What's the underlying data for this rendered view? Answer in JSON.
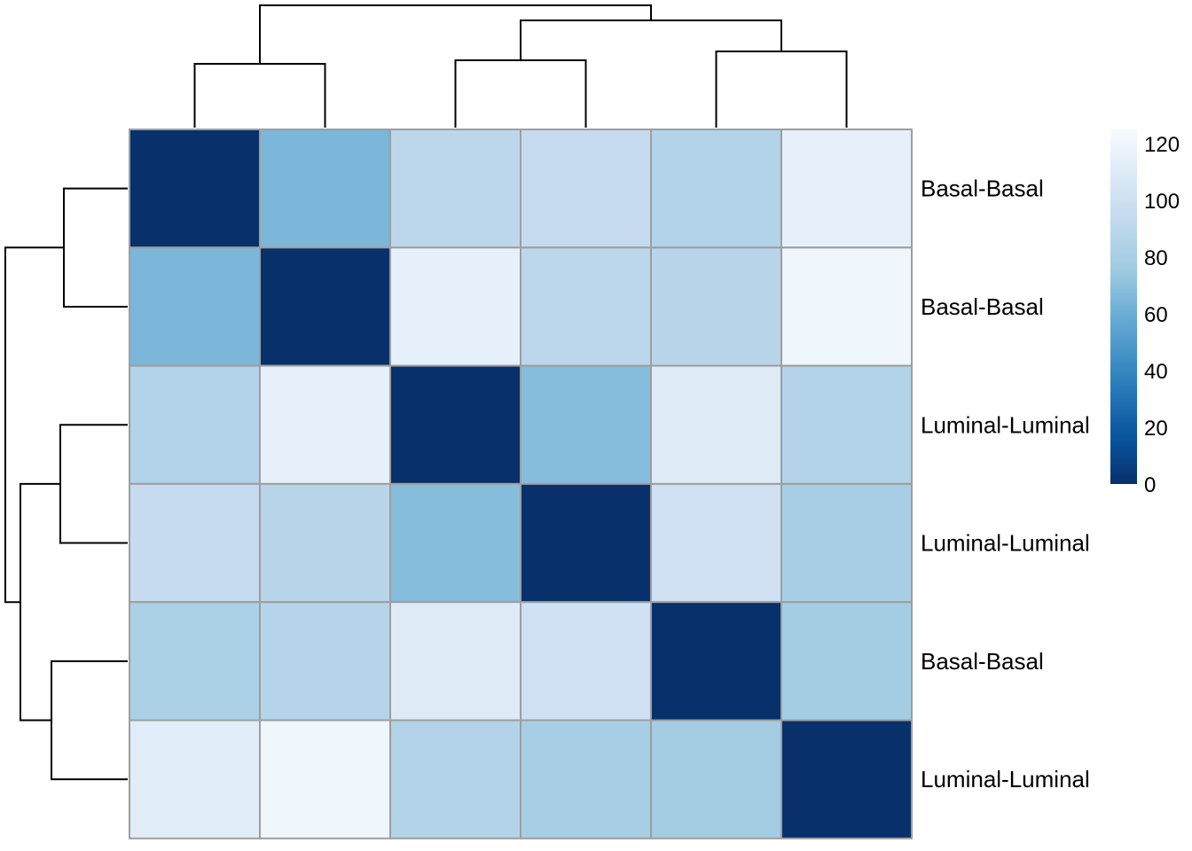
{
  "chart_data": {
    "type": "heatmap",
    "title": "",
    "row_labels": [
      "Basal-Basal",
      "Basal-Basal",
      "Luminal-Luminal",
      "Luminal-Luminal",
      "Basal-Basal",
      "Luminal-Luminal"
    ],
    "values": [
      [
        0,
        65,
        90,
        95,
        85,
        115
      ],
      [
        65,
        0,
        115,
        90,
        88,
        120
      ],
      [
        85,
        115,
        0,
        68,
        110,
        85
      ],
      [
        95,
        88,
        68,
        0,
        100,
        80
      ],
      [
        82,
        87,
        110,
        100,
        0,
        78
      ],
      [
        112,
        120,
        85,
        80,
        78,
        0
      ]
    ],
    "color_scale": {
      "min": 0,
      "max": 125,
      "ticks": [
        0,
        20,
        40,
        60,
        80,
        100,
        120
      ],
      "stops": [
        {
          "value": 0,
          "color": "#08306b"
        },
        {
          "value": 15,
          "color": "#08519c"
        },
        {
          "value": 30,
          "color": "#2171b5"
        },
        {
          "value": 45,
          "color": "#4292c6"
        },
        {
          "value": 60,
          "color": "#6baed6"
        },
        {
          "value": 75,
          "color": "#9ecae1"
        },
        {
          "value": 95,
          "color": "#c6dbef"
        },
        {
          "value": 110,
          "color": "#deebf7"
        },
        {
          "value": 125,
          "color": "#f7fbff"
        }
      ]
    },
    "dendrogram": {
      "columns": "((1,2),((3,4),(5,6)))",
      "rows": "((1,2),((3,4),(5,6)))"
    },
    "grid": true,
    "legend_placement": "right"
  }
}
